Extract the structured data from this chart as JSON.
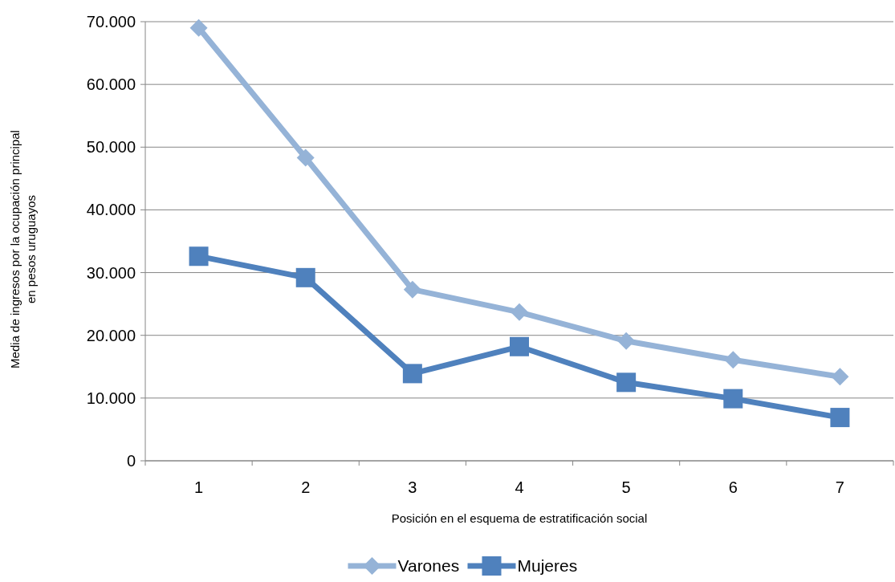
{
  "chart_data": {
    "type": "line",
    "xlabel": "Posición en el esquema de estratificación social",
    "ylabel": "Media de ingresos por la ocupación principal\nen pesos uruguayos",
    "categories": [
      "1",
      "2",
      "3",
      "4",
      "5",
      "6",
      "7"
    ],
    "series": [
      {
        "name": "Varones",
        "color": "#95b3d7",
        "marker": "diamond",
        "values": [
          69000,
          48300,
          27300,
          23700,
          19100,
          16100,
          13400
        ]
      },
      {
        "name": "Mujeres",
        "color": "#4f81bd",
        "marker": "square",
        "values": [
          32600,
          29200,
          13900,
          18200,
          12500,
          9900,
          6900
        ]
      }
    ],
    "ylim": [
      0,
      70000
    ],
    "yticks": [
      0,
      {
        "value": 10000,
        "label": "10.000"
      },
      {
        "value": 20000,
        "label": "20.000"
      },
      {
        "value": 30000,
        "label": "30.000"
      },
      {
        "value": 40000,
        "label": "40.000"
      },
      {
        "value": 50000,
        "label": "50.000"
      },
      {
        "value": 60000,
        "label": "60.000"
      },
      {
        "value": 70000,
        "label": "70.000"
      }
    ],
    "grid": "y",
    "legend": "bottom",
    "line_style": "solid"
  }
}
